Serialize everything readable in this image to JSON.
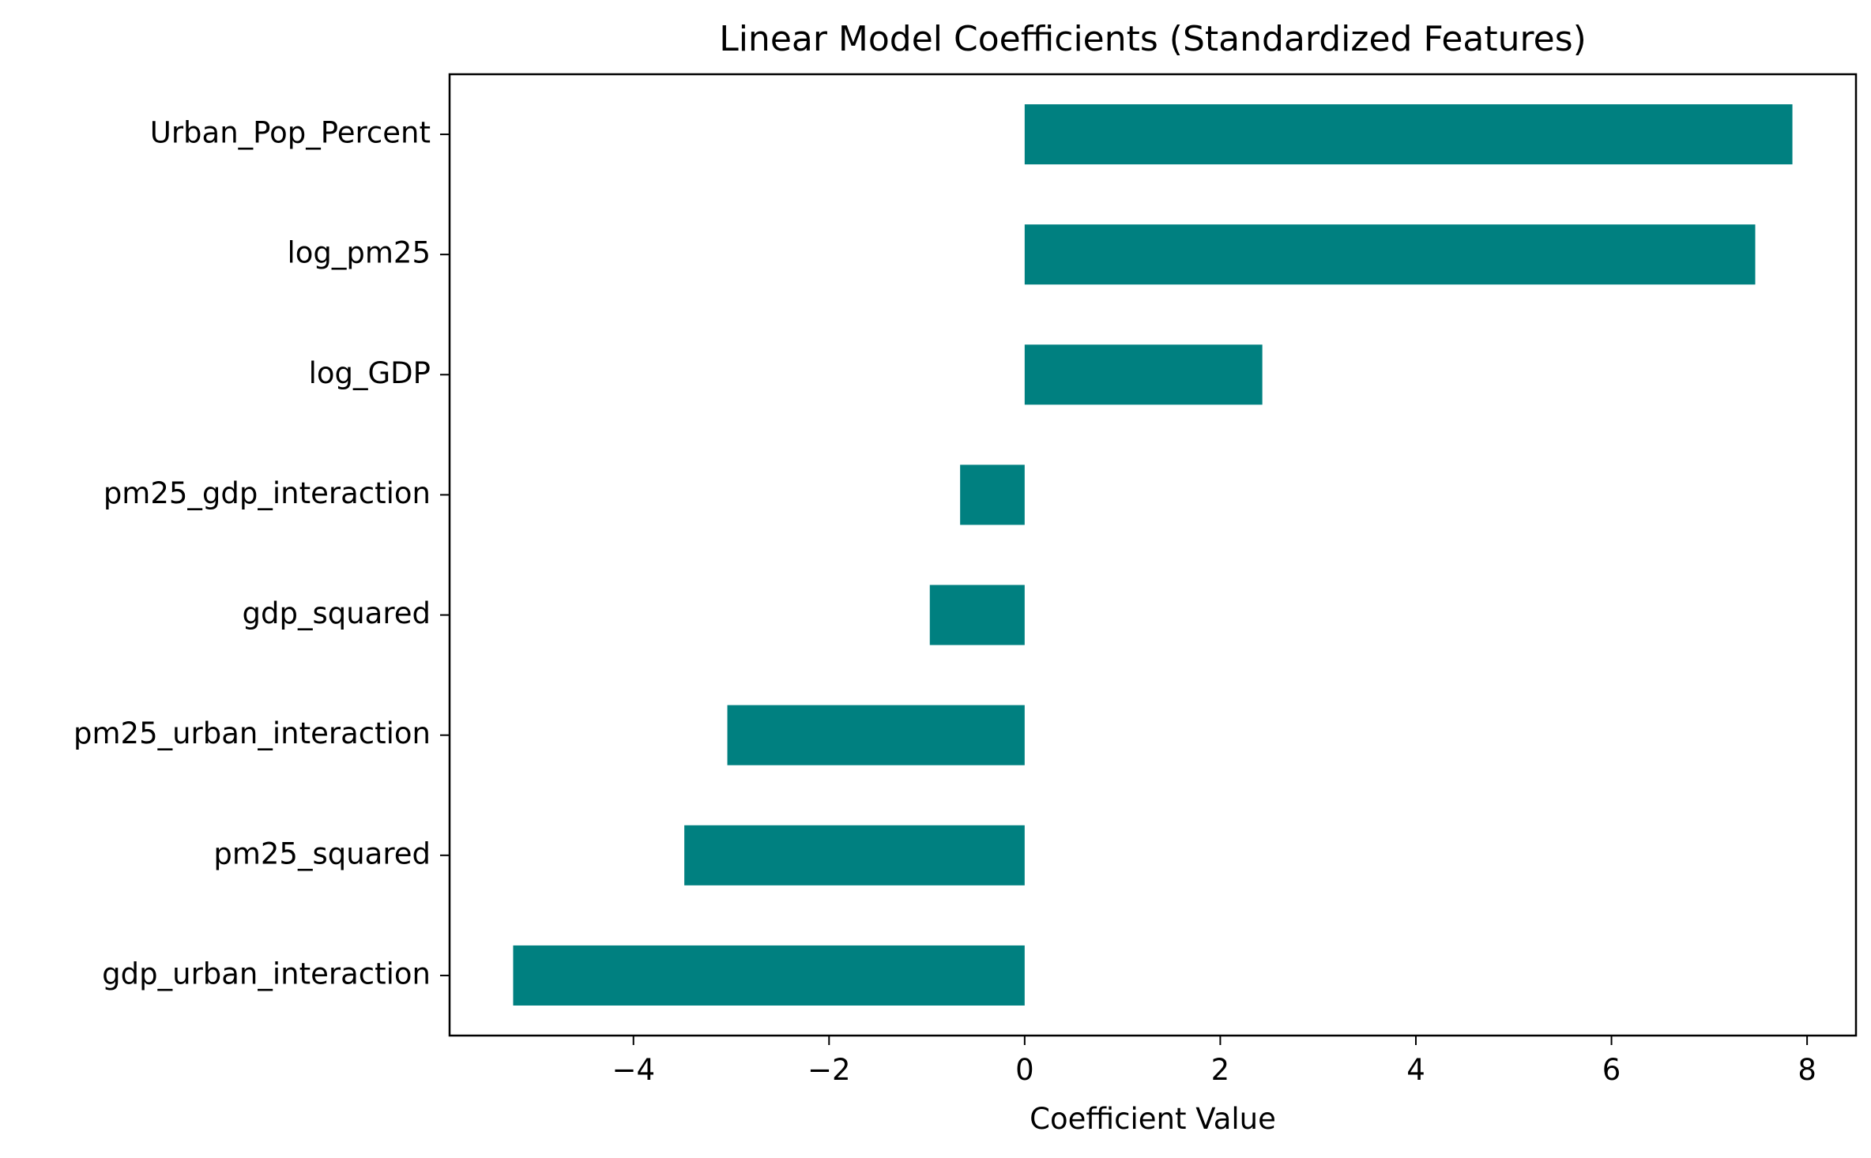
{
  "chart_data": {
    "type": "bar",
    "orientation": "horizontal",
    "title": "Linear Model Coefficients (Standardized Features)",
    "xlabel": "Coefficient Value",
    "ylabel": "",
    "categories": [
      "Urban_Pop_Percent",
      "log_pm25",
      "log_GDP",
      "pm25_gdp_interaction",
      "gdp_squared",
      "pm25_urban_interaction",
      "pm25_squared",
      "gdp_urban_interaction"
    ],
    "values": [
      7.85,
      7.47,
      2.43,
      -0.66,
      -0.97,
      -3.04,
      -3.48,
      -5.23
    ],
    "xticks": [
      -4,
      -2,
      0,
      2,
      4,
      6,
      8
    ],
    "xtick_labels": [
      "−4",
      "−2",
      "0",
      "2",
      "4",
      "6",
      "8"
    ],
    "xlim": [
      -5.88,
      8.5
    ],
    "grid": false,
    "legend": "none",
    "bar_color": "#008080"
  }
}
